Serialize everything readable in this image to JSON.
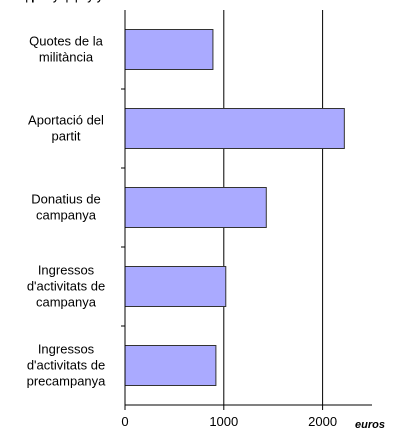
{
  "chart_data": {
    "type": "bar",
    "orientation": "horizontal",
    "categories": [
      "Quotes de la\nmilitància",
      "Aportació del\npartit",
      "Donatius de\ncampanya",
      "Ingressos\nd'activitats de\ncampanya",
      "Ingressos\nd'activitats de\nprecampanya"
    ],
    "values": [
      890,
      2220,
      1430,
      1020,
      920
    ],
    "color": "#aaaaff",
    "x_label": "euros",
    "xlim": [
      0,
      2500
    ],
    "xticks": [
      0,
      1000,
      2000
    ],
    "grid": true
  }
}
